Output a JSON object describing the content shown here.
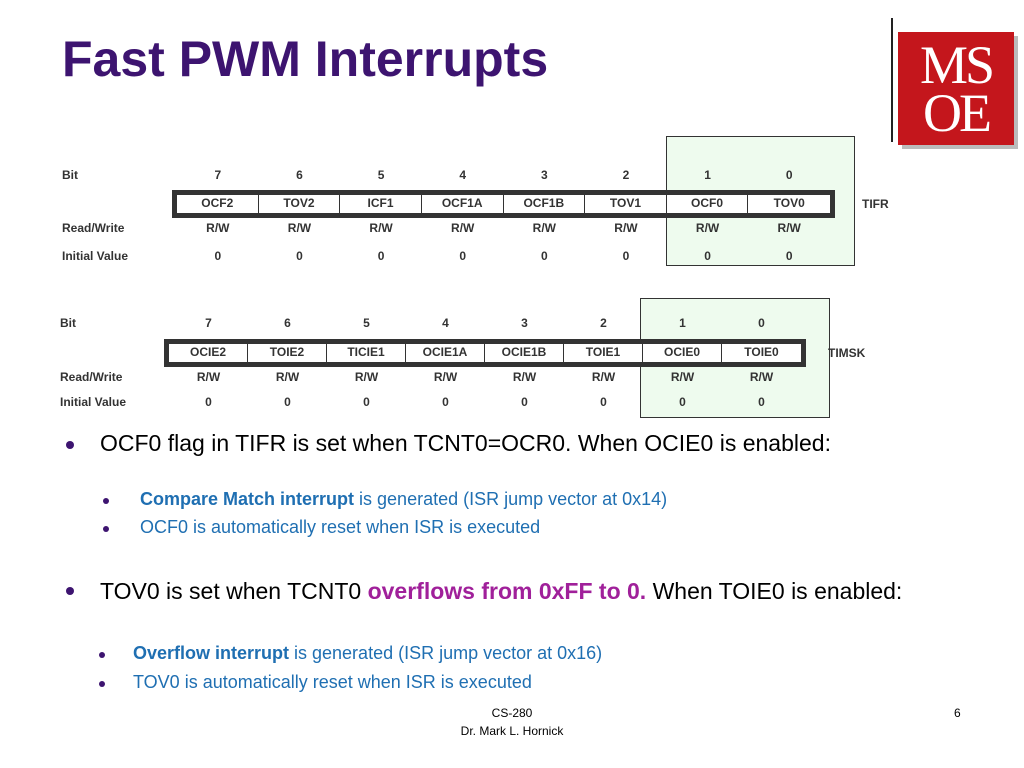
{
  "header": {
    "title": "Fast PWM Interrupts",
    "logo": [
      "MS",
      "OE"
    ]
  },
  "registers": [
    {
      "name": "TIFR",
      "row_labels": [
        "Bit",
        "Read/Write",
        "Initial Value"
      ],
      "bits": [
        "7",
        "6",
        "5",
        "4",
        "3",
        "2",
        "1",
        "0"
      ],
      "fields": [
        "OCF2",
        "TOV2",
        "ICF1",
        "OCF1A",
        "OCF1B",
        "TOV1",
        "OCF0",
        "TOV0"
      ],
      "access": [
        "R/W",
        "R/W",
        "R/W",
        "R/W",
        "R/W",
        "R/W",
        "R/W",
        "R/W"
      ],
      "initial": [
        "0",
        "0",
        "0",
        "0",
        "0",
        "0",
        "0",
        "0"
      ]
    },
    {
      "name": "TIMSK",
      "row_labels": [
        "Bit",
        "Read/Write",
        "Initial Value"
      ],
      "bits": [
        "7",
        "6",
        "5",
        "4",
        "3",
        "2",
        "1",
        "0"
      ],
      "fields": [
        "OCIE2",
        "TOIE2",
        "TICIE1",
        "OCIE1A",
        "OCIE1B",
        "TOIE1",
        "OCIE0",
        "TOIE0"
      ],
      "access": [
        "R/W",
        "R/W",
        "R/W",
        "R/W",
        "R/W",
        "R/W",
        "R/W",
        "R/W"
      ],
      "initial": [
        "0",
        "0",
        "0",
        "0",
        "0",
        "0",
        "0",
        "0"
      ]
    }
  ],
  "bullets": [
    {
      "text": [
        "OCF0 flag in TIFR is set when TCNT0=OCR0. When OCIE0 is enabled:"
      ],
      "sub": [
        [
          "Compare Match interrupt",
          " is generated (ISR jump vector at 0x14)"
        ],
        [
          "OCF0 is automatically reset when ISR is executed"
        ]
      ]
    },
    {
      "text": [
        "TOV0 is set when TCNT0 ",
        "overflows from 0xFF to 0.",
        " When TOIE0 is enabled:"
      ],
      "sub": [
        [
          "Overflow interrupt",
          " is generated (ISR jump vector at 0x16)"
        ],
        [
          "TOV0 is automatically reset when ISR is executed"
        ]
      ]
    }
  ],
  "footer": {
    "course": "CS-280",
    "author": "Dr. Mark L. Hornick",
    "page": "6"
  }
}
